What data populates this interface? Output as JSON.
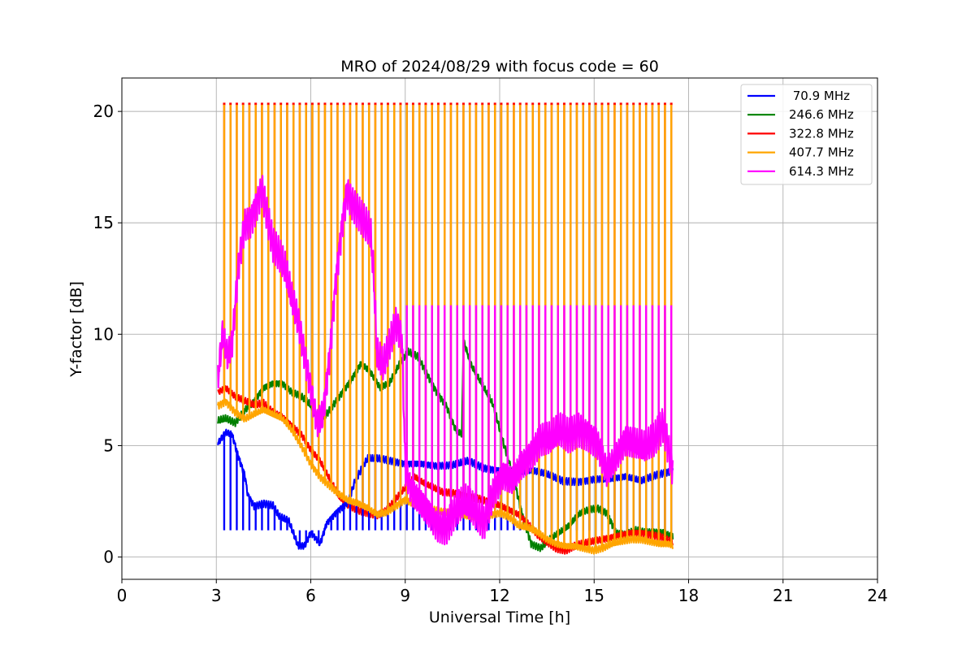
{
  "chart_data": {
    "type": "line",
    "title": "MRO of 2024/08/29 with focus code = 60",
    "xlabel": "Universal Time [h]",
    "ylabel": "Y-factor [dB]",
    "xlim": [
      0,
      24
    ],
    "ylim": [
      -1,
      21.5
    ],
    "xticks": [
      0,
      3,
      6,
      9,
      12,
      15,
      18,
      21,
      24
    ],
    "yticks": [
      0,
      5,
      10,
      15,
      20
    ],
    "grid": true,
    "legend_position": "top-right",
    "pulse_pattern": {
      "start_h": 3.25,
      "end_h": 17.55,
      "period_h": 0.2,
      "high_dB": 20.3,
      "mid_dB": 11.3,
      "low_dip_dB": 1.2
    },
    "series": [
      {
        "name": " 70.9 MHz",
        "color": "#0000ff",
        "x": [
          3.05,
          3.3,
          3.5,
          3.7,
          3.9,
          4.0,
          4.2,
          4.5,
          4.8,
          5.0,
          5.3,
          5.6,
          5.8,
          6.0,
          6.3,
          6.5,
          6.8,
          7.2,
          7.4,
          7.8,
          8.2,
          8.6,
          9.0,
          9.5,
          10.0,
          10.5,
          11.0,
          11.5,
          12.0,
          12.5,
          13.0,
          13.5,
          14.0,
          14.5,
          15.0,
          15.5,
          16.0,
          16.5,
          17.0,
          17.5
        ],
        "y": [
          5.1,
          5.6,
          5.5,
          4.5,
          3.7,
          2.8,
          2.3,
          2.4,
          2.3,
          1.8,
          1.6,
          0.5,
          0.5,
          1.1,
          0.6,
          1.5,
          2.0,
          2.5,
          3.4,
          4.4,
          4.4,
          4.3,
          4.2,
          4.2,
          4.1,
          4.1,
          4.3,
          4.0,
          3.9,
          3.8,
          3.9,
          3.7,
          3.4,
          3.4,
          3.5,
          3.5,
          3.6,
          3.4,
          3.7,
          3.9
        ]
      },
      {
        "name": "246.6 MHz",
        "color": "#008000",
        "x": [
          3.05,
          3.3,
          3.6,
          3.9,
          4.2,
          4.5,
          4.8,
          5.1,
          5.4,
          5.7,
          6.0,
          6.2,
          6.5,
          6.9,
          7.3,
          7.6,
          7.9,
          8.2,
          8.5,
          8.8,
          9.1,
          9.4,
          9.7,
          10.0,
          10.3,
          10.6,
          10.8,
          10.85,
          11.1,
          11.5,
          11.8,
          12.1,
          12.4,
          12.7,
          13.0,
          13.3,
          13.6,
          13.9,
          14.2,
          14.5,
          14.8,
          15.1,
          15.4,
          15.7,
          16.0,
          16.3,
          16.6,
          16.9,
          17.2,
          17.5
        ],
        "y": [
          6.1,
          6.2,
          6.0,
          6.6,
          7.0,
          7.6,
          7.8,
          7.8,
          7.4,
          7.2,
          6.8,
          6.2,
          6.4,
          7.2,
          8.0,
          8.7,
          8.3,
          7.6,
          7.8,
          8.6,
          9.2,
          9.0,
          8.2,
          7.4,
          6.8,
          5.7,
          5.5,
          9.7,
          8.6,
          7.6,
          6.8,
          5.2,
          3.8,
          2.0,
          0.6,
          0.4,
          0.8,
          1.1,
          1.4,
          1.9,
          2.1,
          2.2,
          2.0,
          1.1,
          1.0,
          1.2,
          1.1,
          1.1,
          1.1,
          0.9
        ]
      },
      {
        "name": "322.8 MHz",
        "color": "#ff0000",
        "x": [
          3.05,
          3.3,
          3.6,
          3.9,
          4.2,
          4.5,
          4.8,
          5.1,
          5.4,
          5.7,
          6.0,
          6.3,
          6.6,
          6.9,
          7.2,
          7.5,
          7.8,
          8.1,
          8.4,
          8.7,
          9.0,
          9.3,
          9.6,
          9.9,
          10.2,
          10.5,
          10.8,
          11.1,
          11.4,
          11.7,
          12.0,
          12.3,
          12.6,
          12.9,
          13.2,
          13.5,
          13.8,
          14.1,
          14.4,
          14.7,
          15.0,
          15.3,
          15.6,
          15.9,
          16.2,
          16.5,
          16.8,
          17.1,
          17.4,
          17.5
        ],
        "y": [
          7.4,
          7.6,
          7.2,
          7.0,
          6.8,
          6.9,
          6.5,
          6.3,
          5.9,
          5.5,
          4.8,
          4.3,
          3.5,
          2.7,
          2.3,
          2.1,
          2.0,
          1.9,
          2.1,
          2.6,
          3.1,
          3.6,
          3.3,
          3.1,
          2.9,
          2.9,
          2.8,
          2.7,
          2.6,
          2.4,
          2.3,
          2.1,
          1.9,
          1.5,
          1.0,
          0.7,
          0.4,
          0.3,
          0.5,
          0.6,
          0.7,
          0.8,
          0.9,
          1.0,
          1.1,
          1.1,
          1.0,
          0.9,
          0.7,
          0.6
        ]
      },
      {
        "name": "407.7 MHz",
        "color": "#ffa500",
        "x": [
          3.05,
          3.3,
          3.6,
          3.9,
          4.2,
          4.5,
          4.8,
          5.1,
          5.4,
          5.7,
          6.0,
          6.3,
          6.6,
          6.9,
          7.2,
          7.5,
          7.8,
          8.1,
          8.4,
          8.7,
          9.0,
          9.3,
          9.6,
          9.9,
          10.2,
          10.5,
          10.8,
          11.1,
          11.4,
          11.7,
          12.0,
          12.3,
          12.6,
          12.9,
          13.2,
          13.5,
          13.8,
          14.1,
          14.4,
          14.7,
          15.0,
          15.3,
          15.6,
          15.9,
          16.2,
          16.5,
          16.8,
          17.1,
          17.4,
          17.5
        ],
        "y": [
          6.8,
          7.0,
          6.5,
          6.2,
          6.4,
          6.6,
          6.4,
          6.2,
          5.7,
          5.0,
          4.2,
          3.6,
          3.2,
          2.8,
          2.5,
          2.4,
          2.2,
          1.9,
          2.0,
          2.3,
          2.6,
          2.4,
          2.2,
          2.1,
          2.0,
          2.0,
          1.9,
          1.8,
          1.8,
          1.9,
          2.0,
          1.8,
          1.4,
          1.3,
          1.1,
          0.8,
          0.6,
          0.5,
          0.5,
          0.4,
          0.3,
          0.4,
          0.6,
          0.7,
          0.8,
          0.8,
          0.7,
          0.6,
          0.6,
          0.5
        ]
      },
      {
        "name": "614.3 MHz",
        "color": "#ff00ff",
        "x": [
          3.05,
          3.2,
          3.35,
          3.5,
          3.7,
          3.9,
          4.1,
          4.3,
          4.45,
          4.6,
          4.8,
          5.0,
          5.2,
          5.4,
          5.6,
          5.8,
          6.0,
          6.2,
          6.4,
          6.6,
          6.8,
          7.0,
          7.15,
          7.3,
          7.5,
          7.7,
          7.9,
          8.0,
          8.1,
          8.3,
          8.5,
          8.7,
          8.9,
          9.0,
          9.2,
          9.5,
          9.8,
          10.0,
          10.3,
          10.6,
          10.9,
          11.2,
          11.5,
          11.8,
          12.1,
          12.4,
          12.7,
          13.0,
          13.3,
          13.6,
          13.9,
          14.2,
          14.5,
          14.8,
          15.1,
          15.4,
          15.7,
          16.0,
          16.3,
          16.6,
          16.9,
          17.2,
          17.5
        ],
        "y": [
          8.0,
          10.0,
          9.0,
          9.5,
          13.0,
          15.0,
          15.2,
          16.0,
          16.6,
          15.5,
          14.0,
          13.5,
          12.8,
          11.5,
          10.5,
          9.0,
          7.5,
          6.0,
          6.5,
          9.0,
          12.5,
          15.0,
          16.5,
          16.0,
          15.5,
          15.0,
          14.5,
          12.5,
          9.0,
          8.5,
          9.5,
          10.5,
          9.8,
          4.0,
          3.0,
          2.5,
          2.0,
          1.5,
          1.3,
          2.0,
          2.4,
          2.0,
          1.5,
          3.0,
          3.8,
          3.5,
          4.2,
          4.6,
          5.2,
          5.2,
          5.6,
          5.4,
          5.8,
          5.6,
          5.2,
          3.8,
          4.5,
          5.2,
          5.0,
          4.8,
          5.2,
          6.0,
          4.0
        ]
      }
    ]
  }
}
